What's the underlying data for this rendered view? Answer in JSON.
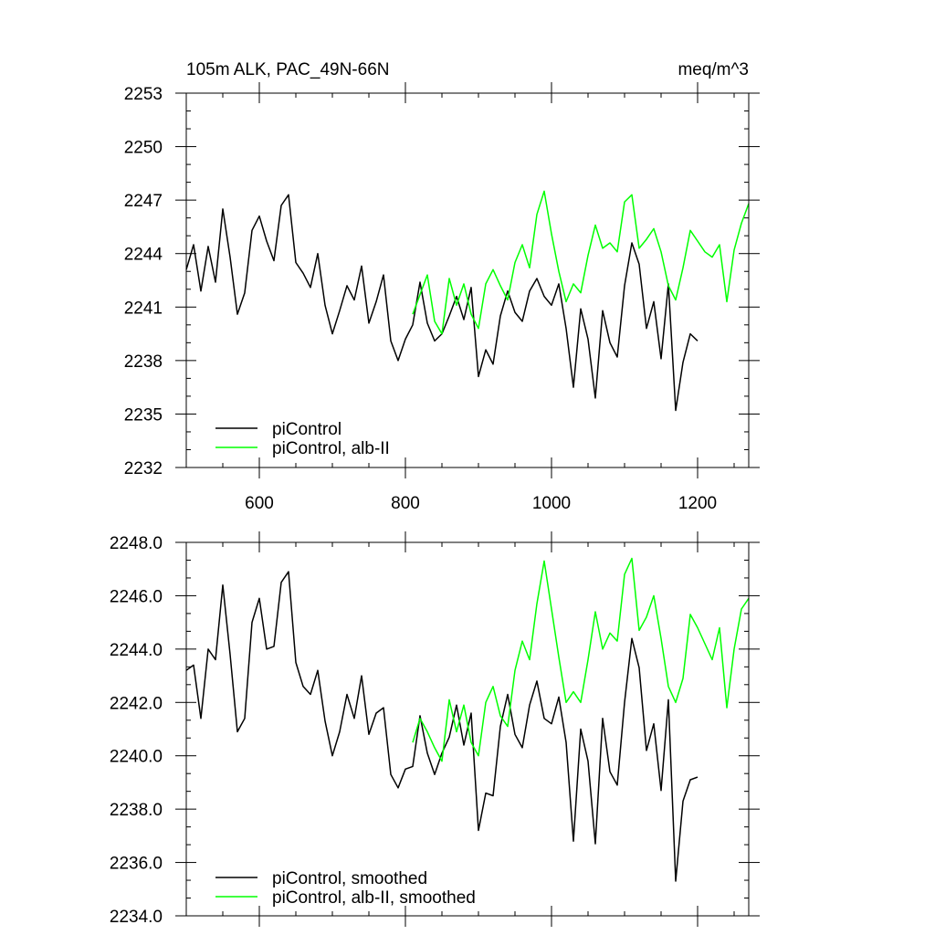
{
  "chart_data": [
    {
      "type": "line",
      "title": "105m ALK, PAC_49N-66N",
      "units": "meq/m^3",
      "xlim": [
        500,
        1270
      ],
      "ylim": [
        2232,
        2253
      ],
      "x_ticks": [
        600,
        800,
        1000,
        1200
      ],
      "x_tick_labels": [
        "600",
        "800",
        "1000",
        "1200"
      ],
      "y_ticks": [
        2232,
        2235,
        2238,
        2241,
        2244,
        2247,
        2250,
        2253
      ],
      "y_tick_labels": [
        "2232",
        "2235",
        "2238",
        "2241",
        "2244",
        "2247",
        "2250",
        "2253"
      ],
      "legend": "bottom-left",
      "series": [
        {
          "name": "piControl",
          "color": "#000000",
          "x": [
            500,
            510,
            520,
            530,
            540,
            550,
            560,
            570,
            580,
            590,
            600,
            610,
            620,
            630,
            640,
            650,
            660,
            670,
            680,
            690,
            700,
            710,
            720,
            730,
            740,
            750,
            760,
            770,
            780,
            790,
            800,
            810,
            820,
            830,
            840,
            850,
            860,
            870,
            880,
            890,
            900,
            910,
            920,
            930,
            940,
            950,
            960,
            970,
            980,
            990,
            1000,
            1010,
            1020,
            1030,
            1040,
            1050,
            1060,
            1070,
            1080,
            1090,
            1100,
            1110,
            1120,
            1130,
            1140,
            1150,
            1160,
            1170,
            1180,
            1190,
            1200
          ],
          "values": [
            2243.1,
            2244.5,
            2241.9,
            2244.4,
            2242.4,
            2246.5,
            2243.8,
            2240.6,
            2241.8,
            2245.3,
            2246.1,
            2244.7,
            2243.6,
            2246.7,
            2247.3,
            2243.5,
            2242.9,
            2242.1,
            2244.0,
            2241.1,
            2239.5,
            2240.8,
            2242.2,
            2241.4,
            2243.3,
            2240.1,
            2241.3,
            2242.8,
            2239.1,
            2238.0,
            2239.2,
            2240.0,
            2242.4,
            2240.1,
            2239.1,
            2239.5,
            2240.5,
            2241.6,
            2240.3,
            2242.1,
            2237.1,
            2238.6,
            2237.8,
            2240.5,
            2241.9,
            2240.7,
            2240.2,
            2241.9,
            2242.6,
            2241.6,
            2241.1,
            2242.3,
            2239.8,
            2236.5,
            2240.9,
            2239.2,
            2235.9,
            2240.8,
            2239.0,
            2238.2,
            2242.2,
            2244.6,
            2243.4,
            2239.8,
            2241.3,
            2238.1,
            2242.3,
            2235.2,
            2237.9,
            2239.5,
            2239.1
          ]
        },
        {
          "name": "piControl, alb-II",
          "color": "#00ff00",
          "x": [
            810,
            820,
            830,
            840,
            850,
            860,
            870,
            880,
            890,
            900,
            910,
            920,
            930,
            940,
            950,
            960,
            970,
            980,
            990,
            1000,
            1010,
            1020,
            1030,
            1040,
            1050,
            1060,
            1070,
            1080,
            1090,
            1100,
            1110,
            1120,
            1130,
            1140,
            1150,
            1160,
            1170,
            1180,
            1190,
            1200,
            1210,
            1220,
            1230,
            1240,
            1250,
            1260,
            1270
          ],
          "values": [
            2240.6,
            2241.7,
            2242.8,
            2240.2,
            2239.5,
            2242.6,
            2241.1,
            2242.3,
            2240.6,
            2239.8,
            2242.3,
            2243.1,
            2242.2,
            2241.4,
            2243.5,
            2244.5,
            2243.2,
            2246.2,
            2247.5,
            2245.1,
            2243.0,
            2241.3,
            2242.3,
            2241.8,
            2243.9,
            2245.6,
            2244.3,
            2244.6,
            2244.1,
            2246.9,
            2247.3,
            2244.3,
            2244.8,
            2245.4,
            2244.1,
            2242.2,
            2241.4,
            2243.2,
            2245.3,
            2244.7,
            2244.1,
            2243.8,
            2244.5,
            2241.3,
            2244.2,
            2245.7,
            2246.8
          ]
        }
      ]
    },
    {
      "type": "line",
      "xlim": [
        500,
        1270
      ],
      "ylim": [
        2234.0,
        2248.0
      ],
      "x_ticks": [
        600,
        800,
        1000,
        1200
      ],
      "y_ticks": [
        2234,
        2236,
        2238,
        2240,
        2242,
        2244,
        2246,
        2248
      ],
      "y_tick_labels": [
        "2234.0",
        "2236.0",
        "2238.0",
        "2240.0",
        "2242.0",
        "2244.0",
        "2246.0",
        "2248.0"
      ],
      "legend": "bottom-left",
      "series": [
        {
          "name": "piControl, smoothed",
          "color": "#000000",
          "x": [
            500,
            510,
            520,
            530,
            540,
            550,
            560,
            570,
            580,
            590,
            600,
            610,
            620,
            630,
            640,
            650,
            660,
            670,
            680,
            690,
            700,
            710,
            720,
            730,
            740,
            750,
            760,
            770,
            780,
            790,
            800,
            810,
            820,
            830,
            840,
            850,
            860,
            870,
            880,
            890,
            900,
            910,
            920,
            930,
            940,
            950,
            960,
            970,
            980,
            990,
            1000,
            1010,
            1020,
            1030,
            1040,
            1050,
            1060,
            1070,
            1080,
            1090,
            1100,
            1110,
            1120,
            1130,
            1140,
            1150,
            1160,
            1170,
            1180,
            1190,
            1200
          ],
          "values": [
            2243.2,
            2243.4,
            2241.4,
            2244.0,
            2243.6,
            2246.4,
            2243.8,
            2240.9,
            2241.4,
            2245.0,
            2245.9,
            2244.0,
            2244.1,
            2246.5,
            2246.9,
            2243.5,
            2242.6,
            2242.3,
            2243.2,
            2241.3,
            2240.0,
            2240.9,
            2242.3,
            2241.4,
            2243.0,
            2240.8,
            2241.6,
            2241.8,
            2239.3,
            2238.8,
            2239.5,
            2239.6,
            2241.5,
            2240.1,
            2239.3,
            2240.1,
            2240.7,
            2241.9,
            2240.4,
            2241.6,
            2237.2,
            2238.6,
            2238.5,
            2241.1,
            2242.3,
            2240.8,
            2240.3,
            2241.9,
            2242.8,
            2241.4,
            2241.2,
            2242.2,
            2240.5,
            2236.8,
            2241.0,
            2239.8,
            2236.7,
            2241.4,
            2239.4,
            2238.9,
            2242.0,
            2244.4,
            2243.3,
            2240.2,
            2241.2,
            2238.7,
            2242.1,
            2235.3,
            2238.3,
            2239.1,
            2239.2
          ]
        },
        {
          "name": "piControl, alb-II, smoothed",
          "color": "#00ff00",
          "x": [
            810,
            820,
            830,
            840,
            850,
            860,
            870,
            880,
            890,
            900,
            910,
            920,
            930,
            940,
            950,
            960,
            970,
            980,
            990,
            1000,
            1010,
            1020,
            1030,
            1040,
            1050,
            1060,
            1070,
            1080,
            1090,
            1100,
            1110,
            1120,
            1130,
            1140,
            1150,
            1160,
            1170,
            1180,
            1190,
            1200,
            1210,
            1220,
            1230,
            1240,
            1250,
            1260,
            1270
          ],
          "values": [
            2240.5,
            2241.4,
            2240.9,
            2240.3,
            2239.8,
            2242.1,
            2240.9,
            2241.9,
            2240.5,
            2240.0,
            2242.0,
            2242.6,
            2241.5,
            2241.1,
            2243.2,
            2244.3,
            2243.6,
            2245.7,
            2247.3,
            2245.5,
            2243.7,
            2242.0,
            2242.4,
            2242.0,
            2243.6,
            2245.4,
            2244.0,
            2244.6,
            2244.3,
            2246.8,
            2247.4,
            2244.7,
            2245.2,
            2246.0,
            2244.4,
            2242.6,
            2242.0,
            2242.9,
            2245.3,
            2244.8,
            2244.2,
            2243.6,
            2244.8,
            2241.8,
            2244.0,
            2245.5,
            2245.9
          ]
        }
      ]
    }
  ]
}
